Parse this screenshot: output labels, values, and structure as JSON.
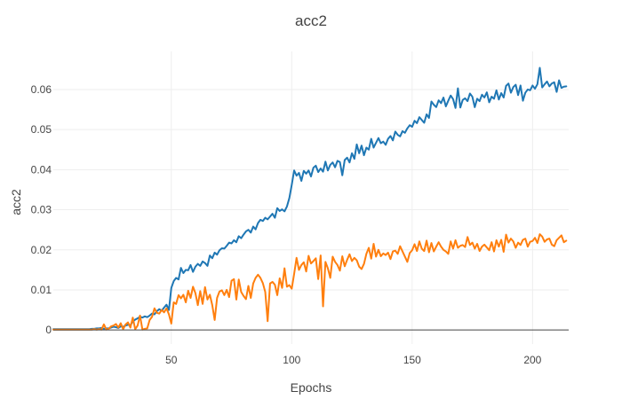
{
  "chart_data": {
    "type": "line",
    "title": "acc2",
    "xlabel": "Epochs",
    "ylabel": "acc2",
    "xlim": [
      1,
      215
    ],
    "ylim": [
      -0.0035,
      0.0695
    ],
    "x_ticks": [
      50,
      100,
      150,
      200
    ],
    "y_ticks": [
      0,
      0.01,
      0.02,
      0.03,
      0.04,
      0.05,
      0.06
    ],
    "y_tick_labels": [
      "0",
      "0.01",
      "0.02",
      "0.03",
      "0.04",
      "0.05",
      "0.06"
    ],
    "grid": true,
    "legend": "none",
    "x_start": 1,
    "series": [
      {
        "color": "#1f77b4",
        "values": [
          0.0002,
          0.0002,
          0.0002,
          0.0002,
          0.0002,
          0.0002,
          0.0002,
          0.0002,
          0.0002,
          0.0002,
          0.0002,
          0.0002,
          0.0002,
          0.0002,
          0.0002,
          0.0002,
          0.0003,
          0.0003,
          0.0004,
          0.0004,
          0.0005,
          0.0003,
          0.0004,
          0.0004,
          0.0006,
          0.0008,
          0.0007,
          0.0005,
          0.0009,
          0.0008,
          0.0011,
          0.0013,
          0.0012,
          0.0021,
          0.0026,
          0.0029,
          0.0033,
          0.0031,
          0.0034,
          0.0032,
          0.0036,
          0.0041,
          0.0039,
          0.0047,
          0.0052,
          0.0048,
          0.0056,
          0.0063,
          0.005,
          0.0105,
          0.0122,
          0.013,
          0.0126,
          0.0155,
          0.0142,
          0.015,
          0.0149,
          0.0162,
          0.0145,
          0.0158,
          0.0165,
          0.016,
          0.0171,
          0.0167,
          0.016,
          0.0186,
          0.0179,
          0.0193,
          0.0188,
          0.0199,
          0.0204,
          0.0203,
          0.021,
          0.0218,
          0.0216,
          0.0224,
          0.0219,
          0.0234,
          0.0229,
          0.0238,
          0.0246,
          0.025,
          0.0243,
          0.0258,
          0.0251,
          0.0267,
          0.0275,
          0.0272,
          0.028,
          0.0276,
          0.0283,
          0.029,
          0.028,
          0.0304,
          0.0297,
          0.0301,
          0.0296,
          0.0308,
          0.0329,
          0.0362,
          0.0398,
          0.0385,
          0.0392,
          0.0372,
          0.0397,
          0.039,
          0.0398,
          0.0383,
          0.0405,
          0.041,
          0.0394,
          0.0403,
          0.0395,
          0.042,
          0.0398,
          0.0412,
          0.0418,
          0.0406,
          0.0422,
          0.0419,
          0.0386,
          0.0424,
          0.043,
          0.0418,
          0.0441,
          0.0427,
          0.0463,
          0.0441,
          0.046,
          0.0436,
          0.0455,
          0.045,
          0.0477,
          0.0455,
          0.0467,
          0.0479,
          0.0466,
          0.047,
          0.0462,
          0.0477,
          0.0484,
          0.0473,
          0.0495,
          0.0487,
          0.0483,
          0.0496,
          0.0492,
          0.0503,
          0.0511,
          0.0507,
          0.0522,
          0.0516,
          0.0531,
          0.0524,
          0.0517,
          0.0538,
          0.0529,
          0.057,
          0.0562,
          0.0556,
          0.0573,
          0.0566,
          0.058,
          0.0558,
          0.0572,
          0.0585,
          0.0576,
          0.0554,
          0.0603,
          0.0555,
          0.0574,
          0.0578,
          0.0571,
          0.059,
          0.0582,
          0.0556,
          0.0577,
          0.0571,
          0.0587,
          0.058,
          0.0593,
          0.0568,
          0.0582,
          0.0577,
          0.0598,
          0.0575,
          0.0591,
          0.058,
          0.0609,
          0.0615,
          0.0592,
          0.0606,
          0.0612,
          0.0586,
          0.061,
          0.0572,
          0.0592,
          0.06,
          0.0598,
          0.061,
          0.0602,
          0.0613,
          0.0654,
          0.0605,
          0.0613,
          0.062,
          0.0608,
          0.0615,
          0.0618,
          0.0594,
          0.0623,
          0.0604,
          0.0607,
          0.0608
        ]
      },
      {
        "color": "#ff7f0e",
        "values": [
          0.0001,
          0.0001,
          0.0001,
          0.0001,
          0.0001,
          0.0001,
          0.0001,
          0.0001,
          0.0001,
          0.0001,
          0.0001,
          0.0001,
          0.0001,
          0.0001,
          0.0001,
          0.0001,
          0.0001,
          0.0002,
          0.0001,
          0.0002,
          0.0001,
          0.0014,
          0.0001,
          0.0003,
          0.0009,
          0.0011,
          0.0015,
          0.0006,
          0.0017,
          0.0002,
          0.0014,
          0.0019,
          0.0006,
          0.0031,
          0.0002,
          0.0011,
          0.0036,
          0.0001,
          0.0003,
          0.0004,
          0.0025,
          0.0033,
          0.0054,
          0.0043,
          0.0041,
          0.005,
          0.0044,
          0.0054,
          0.0039,
          0.0016,
          0.0069,
          0.0065,
          0.0087,
          0.0079,
          0.0088,
          0.0069,
          0.0098,
          0.008,
          0.0108,
          0.0092,
          0.0062,
          0.0097,
          0.0065,
          0.0107,
          0.0076,
          0.0088,
          0.0062,
          0.0025,
          0.008,
          0.0096,
          0.0099,
          0.0087,
          0.01,
          0.0082,
          0.0123,
          0.0127,
          0.0076,
          0.0126,
          0.0095,
          0.0085,
          0.0077,
          0.011,
          0.008,
          0.0116,
          0.013,
          0.0138,
          0.013,
          0.0117,
          0.0095,
          0.0022,
          0.0116,
          0.012,
          0.0113,
          0.0087,
          0.0129,
          0.0105,
          0.0154,
          0.0108,
          0.0112,
          0.0103,
          0.014,
          0.018,
          0.015,
          0.0162,
          0.0169,
          0.0146,
          0.0185,
          0.0166,
          0.0172,
          0.0179,
          0.0127,
          0.0186,
          0.0059,
          0.017,
          0.0154,
          0.013,
          0.0183,
          0.017,
          0.0162,
          0.0148,
          0.0184,
          0.0159,
          0.0175,
          0.0189,
          0.0172,
          0.018,
          0.0174,
          0.0158,
          0.0152,
          0.0165,
          0.019,
          0.0205,
          0.0178,
          0.0215,
          0.0183,
          0.02,
          0.0184,
          0.0191,
          0.0187,
          0.0193,
          0.0177,
          0.0196,
          0.0198,
          0.019,
          0.0209,
          0.0196,
          0.0183,
          0.017,
          0.0192,
          0.0199,
          0.0214,
          0.0197,
          0.0221,
          0.0203,
          0.0197,
          0.0223,
          0.0194,
          0.0217,
          0.0196,
          0.0208,
          0.0219,
          0.0208,
          0.02,
          0.0196,
          0.019,
          0.0221,
          0.0203,
          0.0224,
          0.0205,
          0.021,
          0.0212,
          0.0207,
          0.0232,
          0.0212,
          0.0218,
          0.0203,
          0.0215,
          0.0197,
          0.0208,
          0.0213,
          0.0206,
          0.0199,
          0.0219,
          0.0196,
          0.0224,
          0.0208,
          0.0225,
          0.0195,
          0.0238,
          0.0218,
          0.0228,
          0.0221,
          0.0205,
          0.0218,
          0.0212,
          0.0225,
          0.0228,
          0.0208,
          0.022,
          0.0222,
          0.023,
          0.0217,
          0.0239,
          0.0233,
          0.022,
          0.0226,
          0.0228,
          0.0213,
          0.0209,
          0.0224,
          0.023,
          0.0236,
          0.0219,
          0.0223
        ]
      }
    ]
  }
}
